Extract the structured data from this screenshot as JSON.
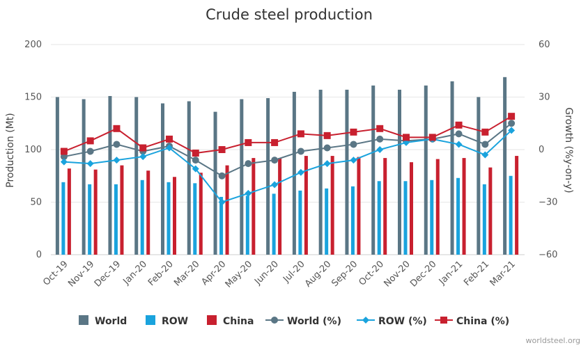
{
  "chart_data": {
    "type": "bar",
    "title": "Crude steel production",
    "ylabel": "Production (Mt)",
    "y2label": "Growth (%y-on-y)",
    "ylim": [
      0,
      200
    ],
    "yticks": [
      "0",
      "50",
      "100",
      "150",
      "200"
    ],
    "y2lim": [
      -60,
      60
    ],
    "y2ticks": [
      "−60",
      "−30",
      "0",
      "30",
      "60"
    ],
    "categories": [
      "Oct-19",
      "Nov-19",
      "Dec-19",
      "Jan-20",
      "Feb-20",
      "Mar-20",
      "Apr-20",
      "May-20",
      "Jun-20",
      "Jul-20",
      "Aug-20",
      "Sep-20",
      "Oct-20",
      "Nov-20",
      "Dec-20",
      "Jan-21",
      "Feb-21",
      "Mar-21"
    ],
    "bar_series": [
      {
        "name": "World",
        "color": "#5a7685",
        "values": [
          150,
          148,
          151,
          150,
          144,
          146,
          136,
          148,
          149,
          155,
          157,
          157,
          161,
          157,
          161,
          165,
          150,
          169
        ]
      },
      {
        "name": "ROW",
        "color": "#1aa3dd",
        "values": [
          69,
          67,
          67,
          71,
          69,
          68,
          55,
          56,
          58,
          61,
          63,
          65,
          70,
          70,
          71,
          73,
          67,
          75
        ]
      },
      {
        "name": "China",
        "color": "#c8202f",
        "values": [
          82,
          81,
          85,
          80,
          74,
          78,
          85,
          92,
          92,
          94,
          94,
          93,
          92,
          88,
          91,
          92,
          83,
          94
        ]
      }
    ],
    "line_series": [
      {
        "name": "World (%)",
        "color": "#5a7685",
        "marker": "circle",
        "values": [
          -4,
          -1,
          3,
          -1,
          2,
          -6,
          -15,
          -8,
          -6,
          -1,
          1,
          3,
          6,
          5,
          6,
          9,
          3,
          15
        ]
      },
      {
        "name": "ROW (%)",
        "color": "#1aa3dd",
        "marker": "diamond",
        "values": [
          -7,
          -8,
          -6,
          -4,
          1,
          -11,
          -30,
          -25,
          -20,
          -13,
          -8,
          -6,
          0,
          4,
          6,
          3,
          -3,
          11
        ]
      },
      {
        "name": "China (%)",
        "color": "#c8202f",
        "marker": "square",
        "values": [
          -1,
          5,
          12,
          1,
          6,
          -2,
          0,
          4,
          4,
          9,
          8,
          10,
          12,
          7,
          7,
          14,
          10,
          19
        ]
      }
    ],
    "grid": true,
    "legend_position": "bottom"
  },
  "credit": "worldsteel.org"
}
